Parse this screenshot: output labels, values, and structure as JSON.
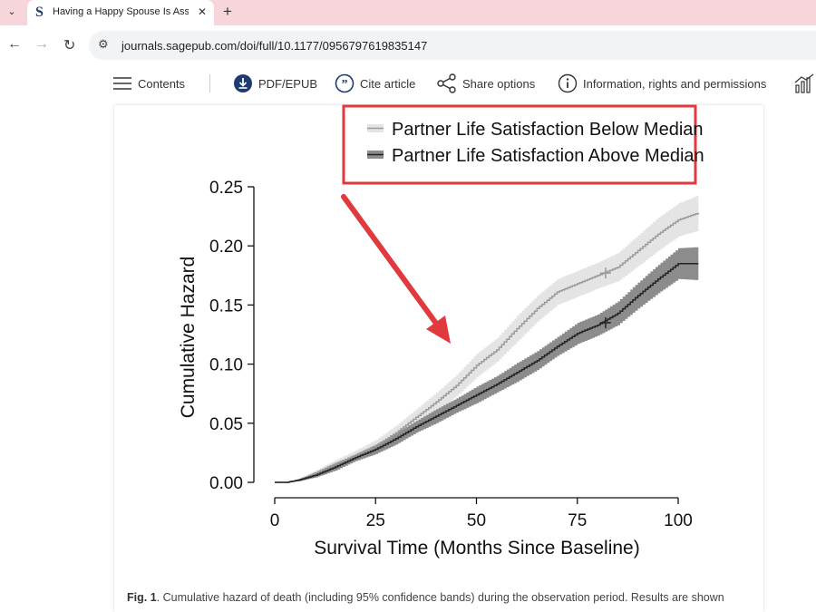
{
  "browser": {
    "tab_title": "Having a Happy Spouse Is Asso",
    "url": "journals.sagepub.com/doi/full/10.1177/0956797619835147",
    "favicon_letter": "S"
  },
  "toolbar": {
    "items": [
      {
        "label": "Contents",
        "icon": "list-icon"
      },
      {
        "label": "PDF/EPUB",
        "icon": "download-icon"
      },
      {
        "label": "Cite article",
        "icon": "quote-icon"
      },
      {
        "label": "Share options",
        "icon": "share-icon"
      },
      {
        "label": "Information, rights and permissions",
        "icon": "info-icon"
      }
    ]
  },
  "figure": {
    "caption_label": "Fig. 1",
    "caption_text": ". Cumulative hazard of death (including 95% confidence bands) during the observation period. Results are shown"
  },
  "chart_data": {
    "type": "line",
    "xlabel": "Survival Time (Months Since Baseline)",
    "ylabel": "Cumulative Hazard",
    "xlim": [
      0,
      105
    ],
    "ylim": [
      0,
      0.25
    ],
    "x_ticks": [
      "0",
      "25",
      "50",
      "75",
      "100"
    ],
    "y_ticks": [
      "0.00",
      "0.05",
      "0.10",
      "0.15",
      "0.20",
      "0.25"
    ],
    "legend_placement": "top-right",
    "series": [
      {
        "name": "Partner Life Satisfaction Below Median",
        "color": "#9a9a9a",
        "band_color": "#e4e4e4",
        "censor_mark": [
          82,
          0.177
        ],
        "points": [
          [
            0,
            0
          ],
          [
            3,
            0
          ],
          [
            6,
            0.002
          ],
          [
            10,
            0.008
          ],
          [
            15,
            0.016
          ],
          [
            20,
            0.023
          ],
          [
            25,
            0.031
          ],
          [
            30,
            0.042
          ],
          [
            35,
            0.055
          ],
          [
            40,
            0.068
          ],
          [
            45,
            0.082
          ],
          [
            50,
            0.099
          ],
          [
            55,
            0.112
          ],
          [
            60,
            0.13
          ],
          [
            65,
            0.147
          ],
          [
            70,
            0.161
          ],
          [
            75,
            0.168
          ],
          [
            80,
            0.175
          ],
          [
            85,
            0.182
          ],
          [
            90,
            0.196
          ],
          [
            95,
            0.21
          ],
          [
            100,
            0.222
          ],
          [
            105,
            0.228
          ]
        ],
        "band_half_width": [
          0,
          0,
          0.001,
          0.002,
          0.003,
          0.004,
          0.005,
          0.006,
          0.007,
          0.008,
          0.009,
          0.01,
          0.01,
          0.011,
          0.011,
          0.011,
          0.011,
          0.011,
          0.012,
          0.013,
          0.014,
          0.014,
          0.015
        ]
      },
      {
        "name": "Partner Life Satisfaction Above Median",
        "color": "#222222",
        "band_color": "#8c8c8c",
        "censor_mark": [
          82,
          0.135
        ],
        "points": [
          [
            0,
            0
          ],
          [
            3,
            0
          ],
          [
            6,
            0.002
          ],
          [
            10,
            0.006
          ],
          [
            15,
            0.013
          ],
          [
            20,
            0.021
          ],
          [
            25,
            0.028
          ],
          [
            30,
            0.037
          ],
          [
            35,
            0.047
          ],
          [
            40,
            0.056
          ],
          [
            45,
            0.065
          ],
          [
            50,
            0.074
          ],
          [
            55,
            0.083
          ],
          [
            60,
            0.093
          ],
          [
            65,
            0.103
          ],
          [
            70,
            0.115
          ],
          [
            75,
            0.126
          ],
          [
            80,
            0.133
          ],
          [
            85,
            0.143
          ],
          [
            90,
            0.158
          ],
          [
            95,
            0.172
          ],
          [
            100,
            0.185
          ],
          [
            105,
            0.185
          ]
        ],
        "band_half_width": [
          0,
          0,
          0.001,
          0.002,
          0.003,
          0.003,
          0.004,
          0.005,
          0.005,
          0.006,
          0.006,
          0.007,
          0.007,
          0.008,
          0.008,
          0.008,
          0.009,
          0.009,
          0.01,
          0.011,
          0.012,
          0.013,
          0.014
        ]
      }
    ]
  },
  "annotation": {
    "legend_box_color": "#e0393e",
    "arrow_color": "#e0393e"
  }
}
